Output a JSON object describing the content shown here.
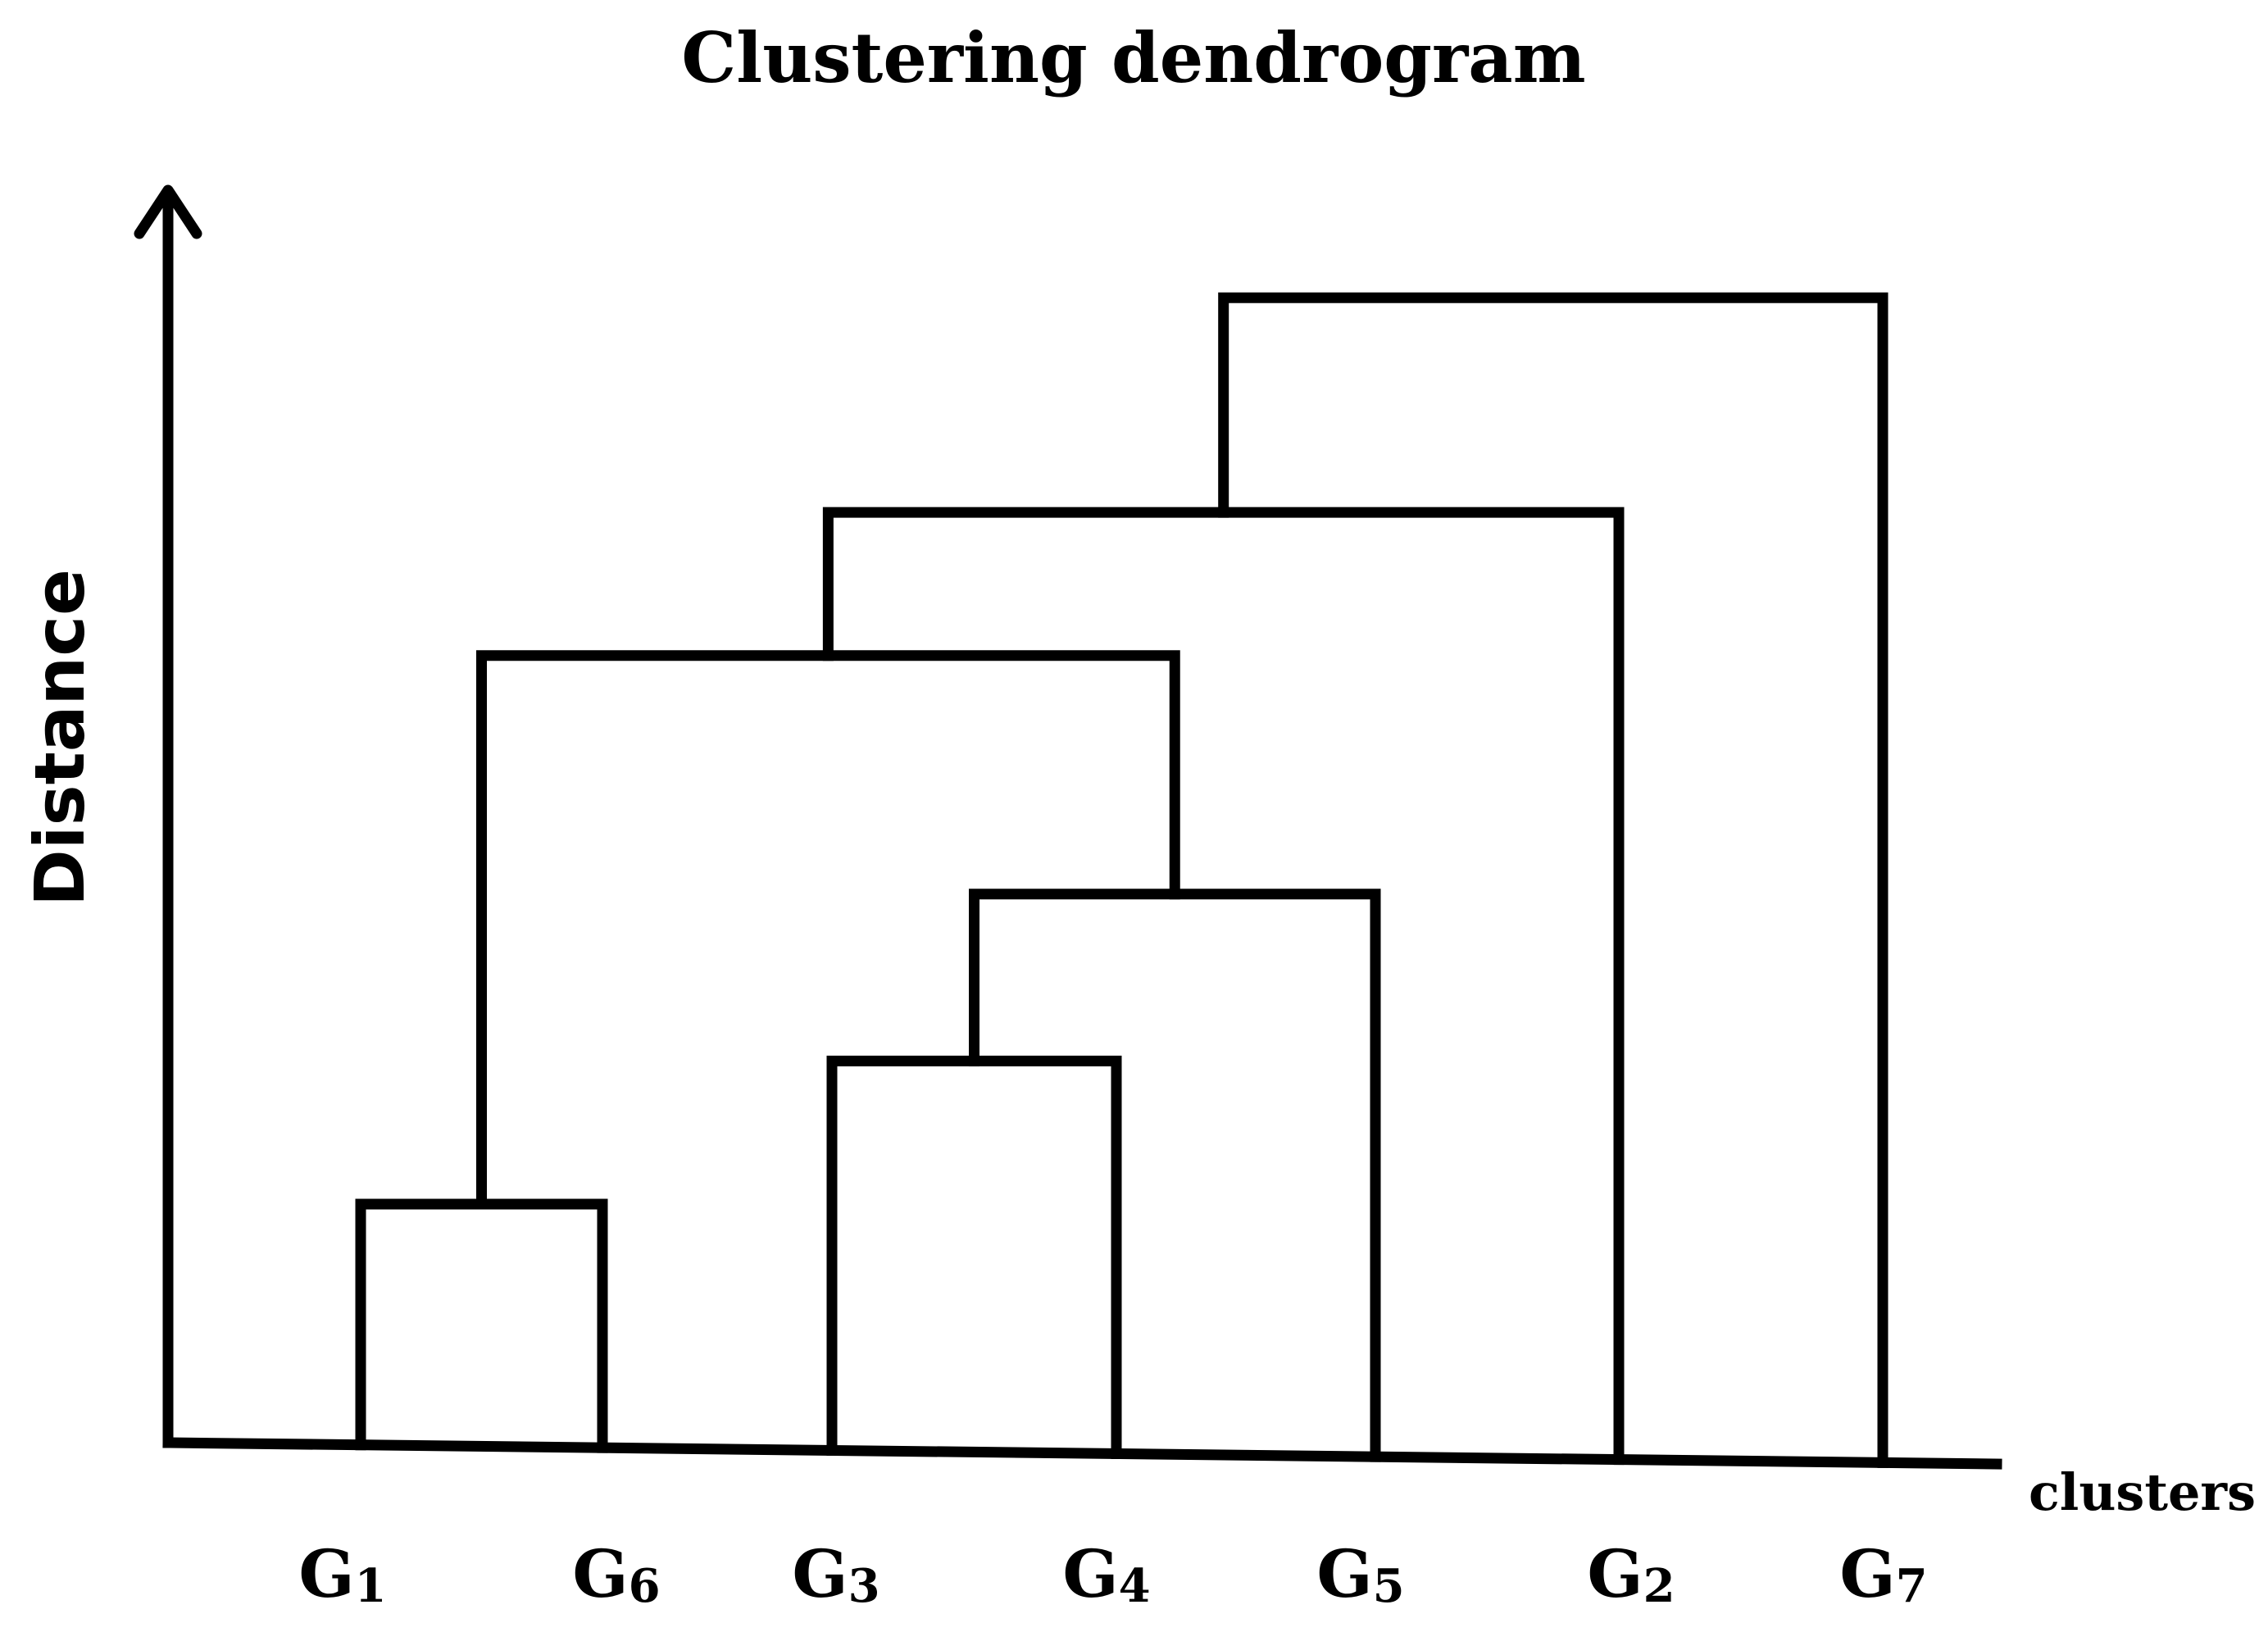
{
  "title": "Clustering dendrogram",
  "y_axis_label": "Distance",
  "x_axis_label": "clusters",
  "leaves": [
    {
      "id": "G1",
      "letter": "G",
      "sub": "1"
    },
    {
      "id": "G6",
      "letter": "G",
      "sub": "6"
    },
    {
      "id": "G3",
      "letter": "G",
      "sub": "3"
    },
    {
      "id": "G4",
      "letter": "G",
      "sub": "4"
    },
    {
      "id": "G5",
      "letter": "G",
      "sub": "5"
    },
    {
      "id": "G2",
      "letter": "G",
      "sub": "2"
    },
    {
      "id": "G7",
      "letter": "G",
      "sub": "7"
    }
  ],
  "merges": [
    {
      "left": "G1",
      "right": "G6",
      "height": 0.2
    },
    {
      "left": "G3",
      "right": "G4",
      "height": 0.32
    },
    {
      "left": "G3+G4",
      "right": "G5",
      "height": 0.46
    },
    {
      "left": "G1+G6",
      "right": "G3+G4+G5",
      "height": 0.66
    },
    {
      "left": "G1+G6+G3+G4+G5",
      "right": "G2",
      "height": 0.78
    },
    {
      "left": "G1+G6+G3+G4+G5+G2",
      "right": "G7",
      "height": 0.96
    }
  ]
}
